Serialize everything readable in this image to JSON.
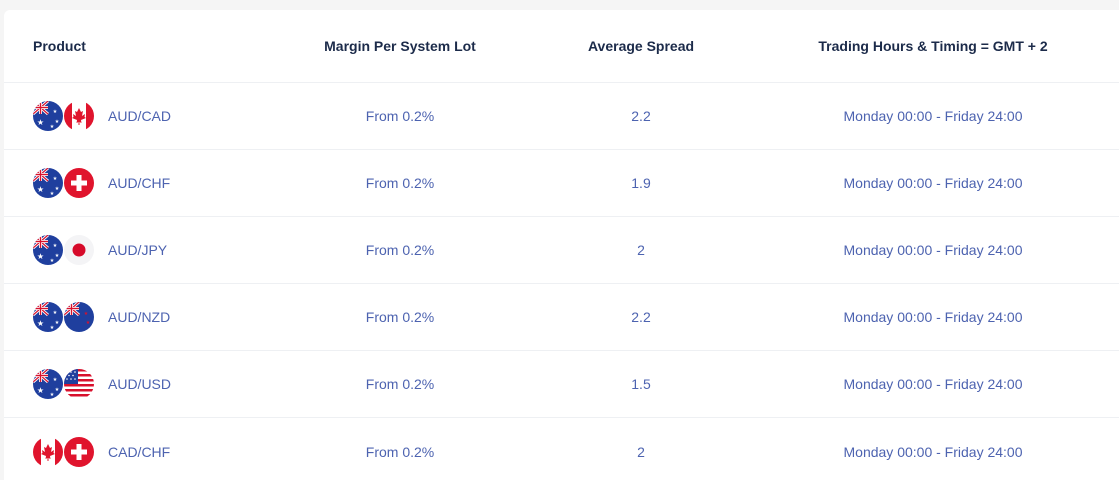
{
  "columns": {
    "product": "Product",
    "margin": "Margin Per System Lot",
    "spread": "Average Spread",
    "hours": "Trading Hours & Timing = GMT + 2"
  },
  "rows": [
    {
      "product": "AUD/CAD",
      "flags": [
        "australia-flag-icon",
        "canada-flag-icon"
      ],
      "margin": "From 0.2%",
      "spread": "2.2",
      "hours": "Monday 00:00 - Friday 24:00"
    },
    {
      "product": "AUD/CHF",
      "flags": [
        "australia-flag-icon",
        "switzerland-flag-icon"
      ],
      "margin": "From 0.2%",
      "spread": "1.9",
      "hours": "Monday 00:00 - Friday 24:00"
    },
    {
      "product": "AUD/JPY",
      "flags": [
        "australia-flag-icon",
        "japan-flag-icon"
      ],
      "margin": "From 0.2%",
      "spread": "2",
      "hours": "Monday 00:00 - Friday 24:00"
    },
    {
      "product": "AUD/NZD",
      "flags": [
        "australia-flag-icon",
        "new-zealand-flag-icon"
      ],
      "margin": "From 0.2%",
      "spread": "2.2",
      "hours": "Monday 00:00 - Friday 24:00"
    },
    {
      "product": "AUD/USD",
      "flags": [
        "australia-flag-icon",
        "usa-flag-icon"
      ],
      "margin": "From 0.2%",
      "spread": "1.5",
      "hours": "Monday 00:00 - Friday 24:00"
    },
    {
      "product": "CAD/CHF",
      "flags": [
        "canada-flag-icon",
        "switzerland-flag-icon"
      ],
      "margin": "From 0.2%",
      "spread": "2",
      "hours": "Monday 00:00 - Friday 24:00"
    }
  ],
  "colors": {
    "header_text": "#1c2b4a",
    "cell_text": "#4d63b0",
    "row_divider": "#eef0f3"
  }
}
